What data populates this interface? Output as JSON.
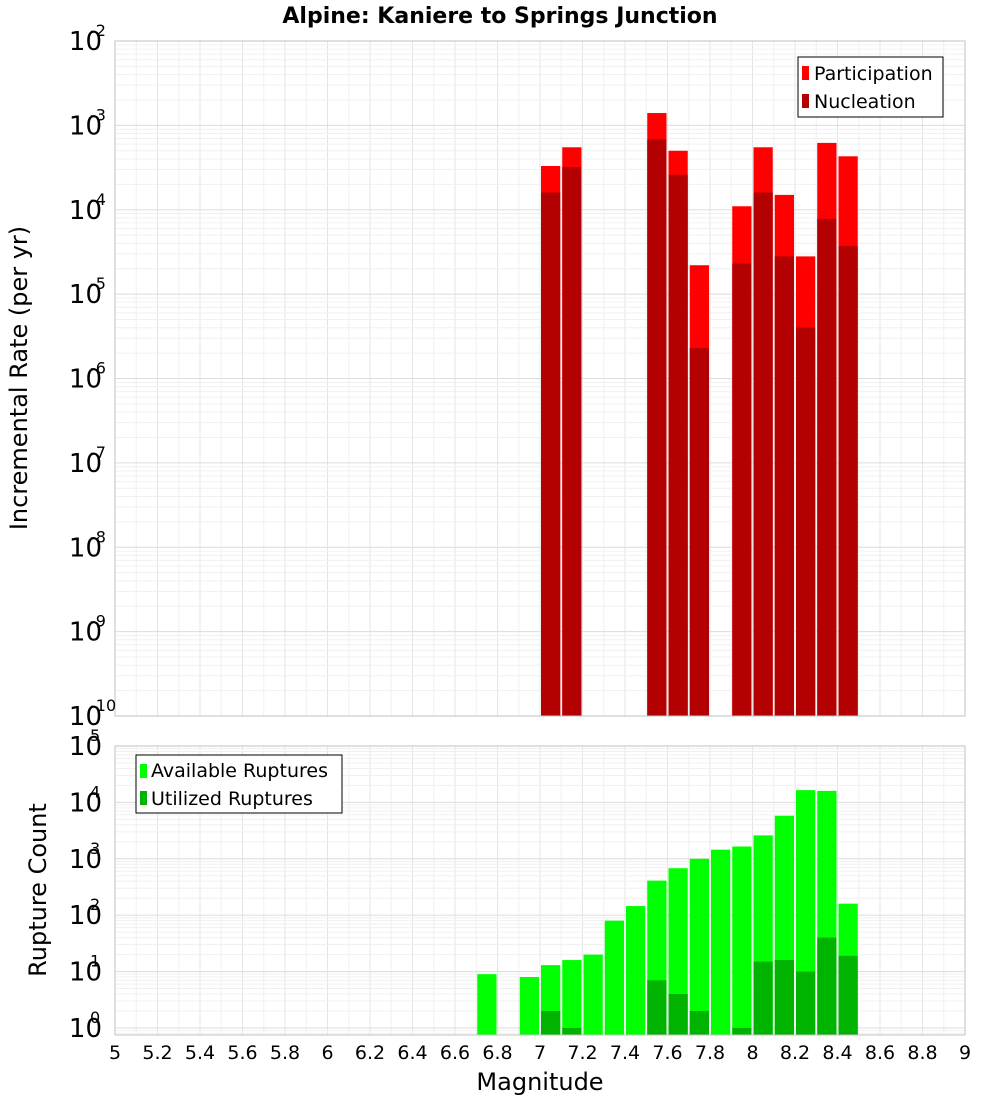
{
  "chart_data": [
    {
      "type": "bar",
      "title": "Alpine: Kaniere to Springs Junction",
      "ylabel": "Incremental Rate (per yr)",
      "yscale": "log",
      "ylim": [
        1e-10,
        0.01
      ],
      "ytick_labels": [
        {
          "base": "10",
          "exp": "-10"
        },
        {
          "base": "10",
          "exp": "-9"
        },
        {
          "base": "10",
          "exp": "-8"
        },
        {
          "base": "10",
          "exp": "-7"
        },
        {
          "base": "10",
          "exp": "-6"
        },
        {
          "base": "10",
          "exp": "-5"
        },
        {
          "base": "10",
          "exp": "-4"
        },
        {
          "base": "10",
          "exp": "-3"
        },
        {
          "base": "10",
          "exp": "-2"
        }
      ],
      "grid": true,
      "legend_position": "top-right",
      "bar_width": 0.1,
      "series": [
        {
          "name": "Participation",
          "color": "#ff0000",
          "x": [
            7.05,
            7.15,
            7.55,
            7.65,
            7.75,
            7.95,
            8.05,
            8.15,
            8.25,
            8.35,
            8.45
          ],
          "values": [
            0.00033,
            0.00055,
            0.0014,
            0.0005,
            2.2e-05,
            0.00011,
            0.00055,
            0.00015,
            2.8e-05,
            0.00062,
            0.00043
          ]
        },
        {
          "name": "Nucleation",
          "color": "#b30000",
          "x": [
            7.05,
            7.15,
            7.55,
            7.65,
            7.75,
            7.95,
            8.05,
            8.15,
            8.25,
            8.35,
            8.45
          ],
          "values": [
            0.00016,
            0.00032,
            0.00068,
            0.00026,
            2.3e-06,
            2.3e-05,
            0.00016,
            2.8e-05,
            4e-06,
            7.8e-05,
            3.7e-05
          ]
        }
      ]
    },
    {
      "type": "bar",
      "xlabel": "Magnitude",
      "ylabel": "Rupture Count",
      "yscale": "log",
      "ylim": [
        0.75,
        100000
      ],
      "ytick_labels": [
        {
          "base": "10",
          "exp": "0"
        },
        {
          "base": "10",
          "exp": "1"
        },
        {
          "base": "10",
          "exp": "2"
        },
        {
          "base": "10",
          "exp": "3"
        },
        {
          "base": "10",
          "exp": "4"
        },
        {
          "base": "10",
          "exp": "5"
        }
      ],
      "xlim": [
        5,
        9
      ],
      "xticks": [
        "5",
        "5.2",
        "5.4",
        "5.6",
        "5.8",
        "6",
        "6.2",
        "6.4",
        "6.6",
        "6.8",
        "7",
        "7.2",
        "7.4",
        "7.6",
        "7.8",
        "8",
        "8.2",
        "8.4",
        "8.6",
        "8.8",
        "9"
      ],
      "grid": true,
      "legend_position": "top-left",
      "bar_width": 0.1,
      "series": [
        {
          "name": "Available Ruptures",
          "color": "#00ff00",
          "x": [
            6.75,
            6.95,
            7.05,
            7.15,
            7.25,
            7.35,
            7.45,
            7.55,
            7.65,
            7.75,
            7.85,
            7.95,
            8.05,
            8.15,
            8.25,
            8.35,
            8.45
          ],
          "values": [
            9,
            8,
            13,
            16,
            20,
            80,
            145,
            410,
            680,
            1000,
            1450,
            1650,
            2600,
            5800,
            16500,
            16000,
            160
          ]
        },
        {
          "name": "Utilized Ruptures",
          "color": "#00b300",
          "x": [
            7.05,
            7.15,
            7.55,
            7.65,
            7.75,
            7.95,
            8.05,
            8.15,
            8.25,
            8.35,
            8.45
          ],
          "values": [
            2,
            1,
            7,
            4,
            2,
            1,
            15,
            16,
            10,
            40,
            19
          ]
        }
      ]
    }
  ]
}
